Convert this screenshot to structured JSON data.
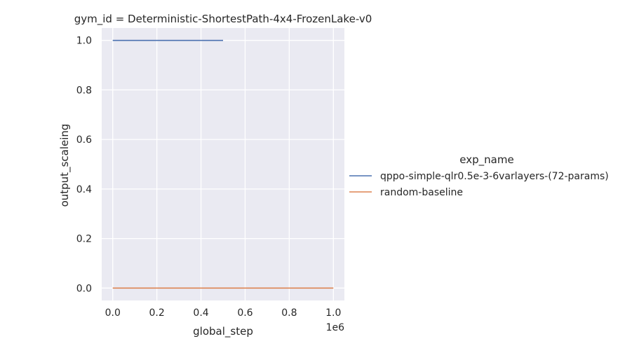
{
  "chart_data": {
    "type": "line",
    "title": "gym_id = Deterministic-ShortestPath-4x4-FrozenLake-v0",
    "xlabel": "global_step",
    "ylabel": "output_scaleing",
    "x_offset_label": "1e6",
    "xlim": [
      -0.05,
      1.05
    ],
    "ylim": [
      -0.05,
      1.05
    ],
    "xticks": [
      0.0,
      0.2,
      0.4,
      0.6,
      0.8,
      1.0
    ],
    "xtick_labels": [
      "0.0",
      "0.2",
      "0.4",
      "0.6",
      "0.8",
      "1.0"
    ],
    "yticks": [
      0.0,
      0.2,
      0.4,
      0.6,
      0.8,
      1.0
    ],
    "ytick_labels": [
      "0.0",
      "0.2",
      "0.4",
      "0.6",
      "0.8",
      "1.0"
    ],
    "grid": true,
    "legend": {
      "title": "exp_name",
      "placement": "right-outside"
    },
    "series": [
      {
        "name": "qppo-simple-qlr0.5e-3-6varlayers-(72-params)",
        "color": "#4c72b0",
        "x": [
          0.0,
          0.5
        ],
        "y": [
          1.0,
          1.0
        ]
      },
      {
        "name": "random-baseline",
        "color": "#dd8452",
        "x": [
          0.0,
          1.0
        ],
        "y": [
          0.0,
          0.0
        ]
      }
    ]
  }
}
